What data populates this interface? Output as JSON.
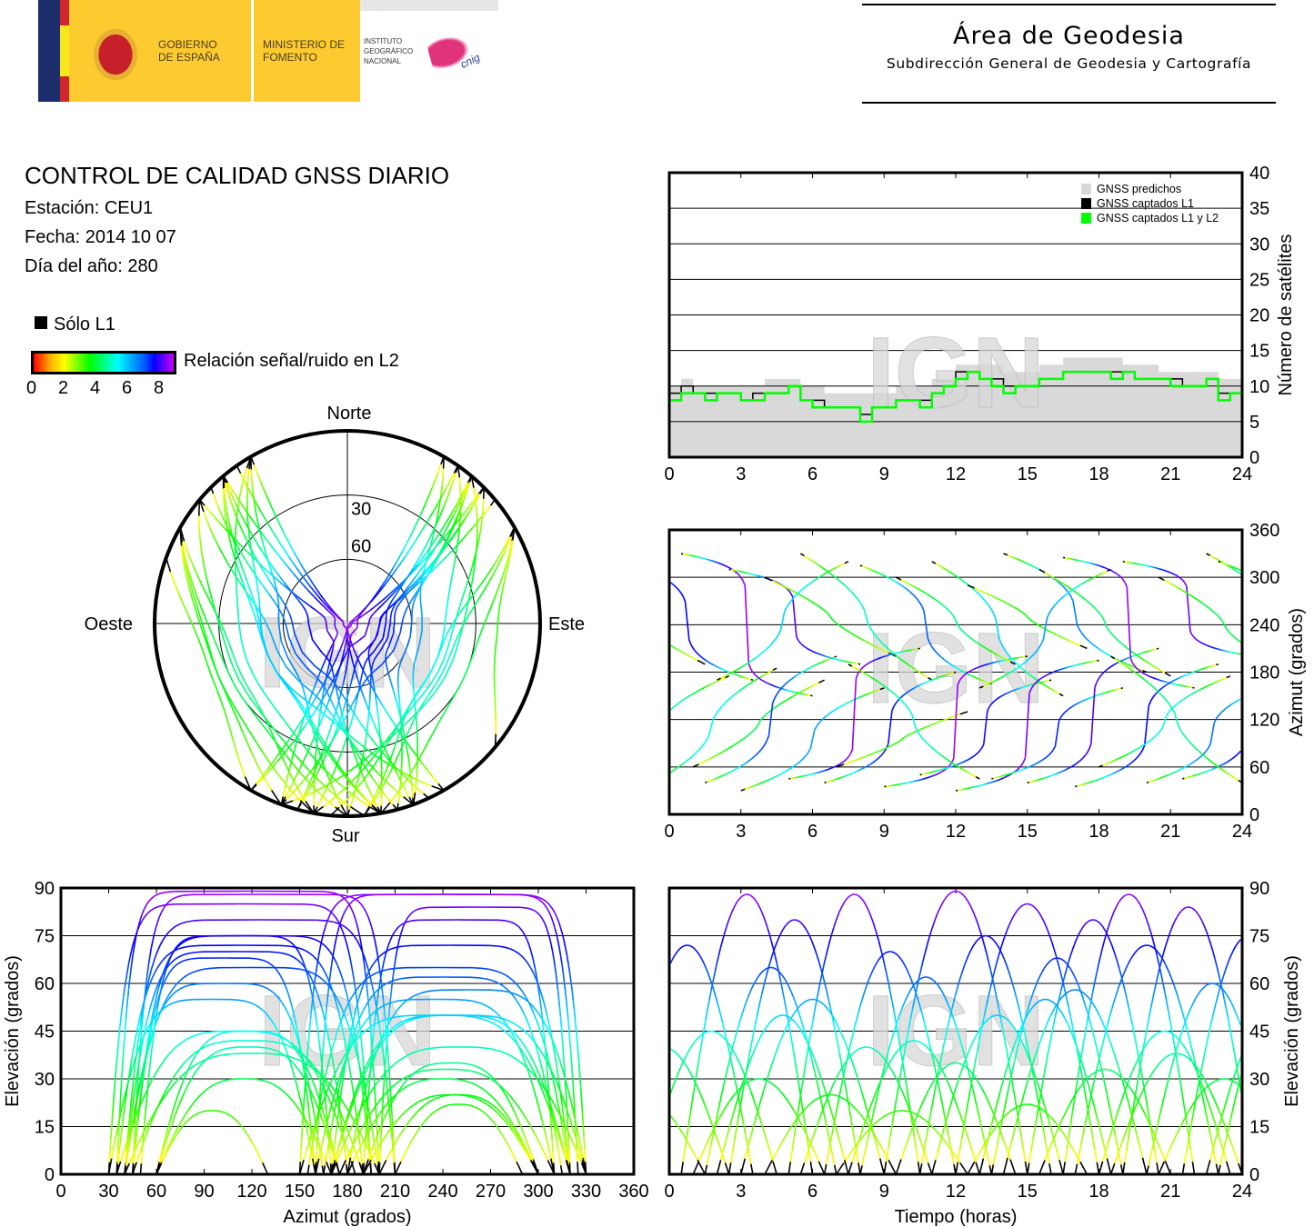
{
  "logo": {
    "gobierno": "GOBIERNO DE ESPAÑA",
    "ministerio": "MINISTERIO DE FOMENTO",
    "instituto": "INSTITUTO GEOGRÁFICO NACIONAL",
    "cnig": "cnig"
  },
  "header": {
    "title": "Área de Geodesia",
    "subtitle": "Subdirección General de Geodesia y Cartografía"
  },
  "info": {
    "title": "CONTROL DE CALIDAD GNSS DIARIO",
    "station": "Estación: CEU1",
    "date": "Fecha: 2014 10 07",
    "doy": "Día del año: 280"
  },
  "legend": {
    "only_l1": "Sólo L1",
    "snr_label": "Relación señal/ruido en L2",
    "snr_ticks": [
      "0",
      "2",
      "4",
      "6",
      "8"
    ]
  },
  "watermark": "IGN",
  "colors": {
    "predicted": "#d9d9d9",
    "l1": "#000000",
    "l1l2": "#00ff00",
    "grid": "#000000"
  },
  "satellite_passes_fields": [
    "start_hour",
    "end_hour",
    "max_elevation_deg",
    "rise_azimuth_deg",
    "set_azimuth_deg"
  ],
  "satellite_passes": [
    [
      -2,
      3.5,
      72,
      320,
      170
    ],
    [
      -1,
      4.5,
      45,
      35,
      185
    ],
    [
      0.5,
      6,
      88,
      330,
      150
    ],
    [
      1,
      6.5,
      30,
      60,
      170
    ],
    [
      1.5,
      7,
      65,
      40,
      200
    ],
    [
      2.5,
      8,
      80,
      310,
      190
    ],
    [
      3,
      9,
      55,
      30,
      160
    ],
    [
      4,
      9.5,
      25,
      300,
      200
    ],
    [
      5,
      10.5,
      88,
      45,
      210
    ],
    [
      5.5,
      11,
      40,
      330,
      170
    ],
    [
      6.5,
      12,
      70,
      40,
      180
    ],
    [
      7,
      12.5,
      20,
      60,
      130
    ],
    [
      8,
      13.5,
      62,
      315,
      165
    ],
    [
      9,
      15,
      89,
      35,
      200
    ],
    [
      9.5,
      14.5,
      35,
      300,
      190
    ],
    [
      10.5,
      16,
      75,
      50,
      170
    ],
    [
      11,
      16.5,
      50,
      320,
      150
    ],
    [
      12,
      18,
      85,
      30,
      195
    ],
    [
      12.5,
      17.5,
      22,
      290,
      210
    ],
    [
      13.5,
      19,
      68,
      45,
      160
    ],
    [
      14,
      20,
      58,
      330,
      180
    ],
    [
      15,
      20.5,
      80,
      40,
      210
    ],
    [
      15.5,
      21,
      33,
      310,
      175
    ],
    [
      16.5,
      22,
      88,
      325,
      160
    ],
    [
      17,
      23,
      72,
      35,
      190
    ],
    [
      18,
      23.5,
      45,
      60,
      175
    ],
    [
      19,
      24.5,
      84,
      320,
      200
    ],
    [
      20,
      25.5,
      60,
      40,
      165
    ],
    [
      20.5,
      26,
      30,
      300,
      180
    ],
    [
      21.5,
      27,
      75,
      45,
      195
    ],
    [
      22.5,
      28,
      50,
      330,
      170
    ],
    [
      -3,
      2.5,
      40,
      60,
      175
    ],
    [
      -4,
      1.5,
      25,
      300,
      190
    ],
    [
      23,
      29,
      65,
      320,
      155
    ],
    [
      2,
      7.5,
      50,
      170,
      320
    ],
    [
      7.5,
      13,
      42,
      190,
      45
    ],
    [
      13,
      18.5,
      55,
      160,
      310
    ],
    [
      18.5,
      24,
      38,
      200,
      40
    ]
  ],
  "chart_data": [
    {
      "type": "area",
      "name": "satellite-count",
      "xlabel": "",
      "ylabel": "Número de satélites",
      "xlim": [
        0,
        24
      ],
      "ylim": [
        0,
        40
      ],
      "xticks": [
        "0",
        "3",
        "6",
        "9",
        "12",
        "15",
        "18",
        "21",
        "24"
      ],
      "yticks": [
        "0",
        "5",
        "10",
        "15",
        "20",
        "25",
        "30",
        "35",
        "40"
      ],
      "legend_position": "top-right",
      "x_step_hours": 0.5,
      "series": [
        {
          "name": "GNSS predichos",
          "values": [
            10,
            11,
            10,
            10,
            10,
            10,
            10,
            10,
            11,
            11,
            11,
            10,
            10,
            9,
            9,
            9,
            9,
            9,
            9,
            10,
            10,
            10,
            11,
            11,
            13,
            13,
            13,
            13,
            12,
            12,
            12,
            13,
            13,
            14,
            14,
            14,
            14,
            14,
            13,
            13,
            13,
            12,
            12,
            12,
            12,
            12,
            11,
            11,
            10
          ]
        },
        {
          "name": "GNSS captados L1",
          "values": [
            9,
            10,
            9,
            9,
            9,
            9,
            8,
            9,
            9,
            9,
            10,
            8,
            8,
            7,
            7,
            7,
            6,
            7,
            7,
            8,
            8,
            8,
            9,
            10,
            12,
            12,
            11,
            11,
            10,
            10,
            10,
            11,
            11,
            12,
            12,
            12,
            12,
            12,
            12,
            11,
            11,
            11,
            11,
            10,
            10,
            11,
            9,
            9,
            8
          ]
        },
        {
          "name": "GNSS captados L1 y L2",
          "values": [
            8,
            9,
            9,
            8,
            9,
            9,
            8,
            8,
            9,
            9,
            10,
            8,
            7,
            7,
            7,
            7,
            5,
            7,
            7,
            8,
            8,
            7,
            9,
            10,
            11,
            12,
            11,
            10,
            9,
            10,
            10,
            11,
            11,
            12,
            12,
            12,
            12,
            11,
            12,
            11,
            11,
            11,
            10,
            10,
            10,
            11,
            8,
            9,
            7
          ]
        }
      ]
    },
    {
      "type": "scatter",
      "name": "azimuth-vs-time",
      "xlabel": "",
      "ylabel": "Azimut (grados)",
      "xlim": [
        0,
        24
      ],
      "ylim": [
        0,
        360
      ],
      "xticks": [
        "0",
        "3",
        "6",
        "9",
        "12",
        "15",
        "18",
        "21",
        "24"
      ],
      "yticks": [
        "0",
        "60",
        "120",
        "180",
        "240",
        "300",
        "360"
      ]
    },
    {
      "type": "scatter",
      "name": "sky-plot",
      "direction_labels": {
        "north": "Norte",
        "south": "Sur",
        "west": "Oeste",
        "east": "Este"
      },
      "ring_labels": [
        "30",
        "60"
      ]
    },
    {
      "type": "scatter",
      "name": "elevation-vs-azimuth",
      "xlabel": "Azimut (grados)",
      "ylabel": "Elevación (grados)",
      "xlim": [
        0,
        360
      ],
      "ylim": [
        0,
        90
      ],
      "xticks": [
        "0",
        "30",
        "60",
        "90",
        "120",
        "150",
        "180",
        "210",
        "240",
        "270",
        "300",
        "330",
        "360"
      ],
      "yticks": [
        "0",
        "15",
        "30",
        "45",
        "60",
        "75",
        "90"
      ]
    },
    {
      "type": "scatter",
      "name": "elevation-vs-time",
      "xlabel": "Tiempo (horas)",
      "ylabel": "Elevación (grados)",
      "xlim": [
        0,
        24
      ],
      "ylim": [
        0,
        90
      ],
      "xticks": [
        "0",
        "3",
        "6",
        "9",
        "12",
        "15",
        "18",
        "21",
        "24"
      ],
      "yticks": [
        "0",
        "15",
        "30",
        "45",
        "60",
        "75",
        "90"
      ]
    }
  ]
}
